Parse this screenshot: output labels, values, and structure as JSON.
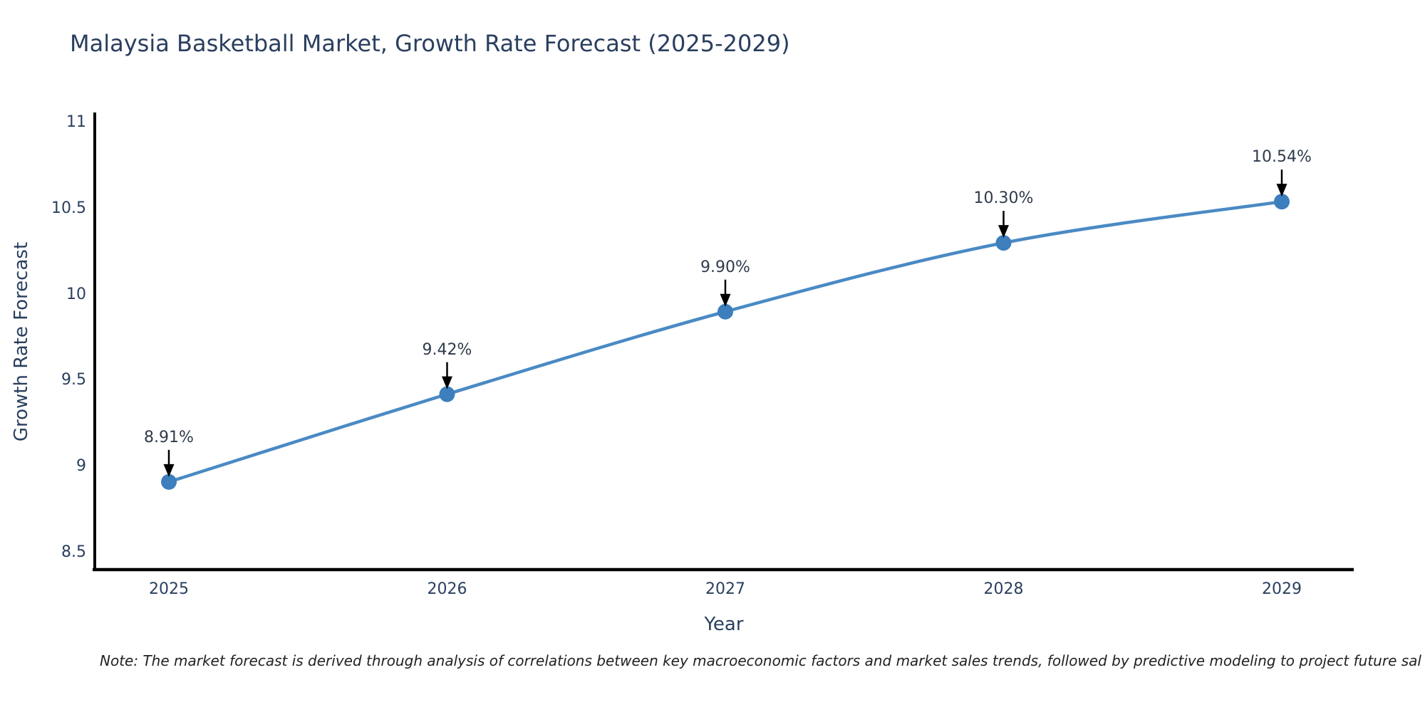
{
  "title": "Malaysia Basketball Market, Growth Rate Forecast (2025-2029)",
  "note": "Note: The market forecast is derived through analysis of correlations between key macroeconomic factors and market sales trends, followed by predictive modeling to project future sal",
  "chart_data": {
    "type": "line",
    "title": "Malaysia Basketball Market, Growth Rate Forecast (2025-2029)",
    "xlabel": "Year",
    "ylabel": "Growth Rate Forecast",
    "x": [
      2025,
      2026,
      2027,
      2028,
      2029
    ],
    "values": [
      8.91,
      9.42,
      9.9,
      10.3,
      10.54
    ],
    "point_labels": [
      "8.91%",
      "9.42%",
      "9.90%",
      "10.30%",
      "10.54%"
    ],
    "xtick_labels": [
      "2025",
      "2026",
      "2027",
      "2028",
      "2029"
    ],
    "yticks": [
      8.5,
      9,
      9.5,
      10,
      10.5,
      11
    ],
    "ytick_labels": [
      "8.5",
      "9",
      "9.5",
      "10",
      "10.5",
      "11"
    ],
    "ylim": [
      8.4,
      11.05
    ],
    "line_shape": "spline",
    "grid": false,
    "legend_position": "none",
    "annotations": "arrow-down-to-marker",
    "colors": {
      "line": "#4a8ac4",
      "marker": "#3d7ebd",
      "axis": "#000000",
      "text": "#2a3f5f",
      "annotation_text": "#2f3b4c",
      "arrow": "#000000",
      "background": "#ffffff"
    }
  }
}
